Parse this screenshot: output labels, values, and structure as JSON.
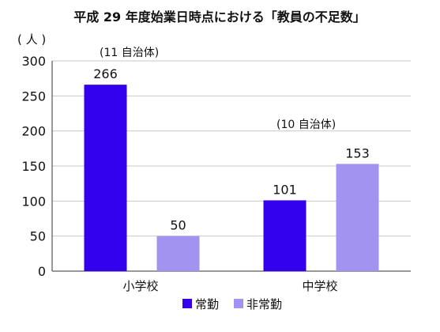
{
  "chart_data": {
    "type": "bar",
    "title": "平成 29 年度始業日時点における「教員の不足数」",
    "ylabel": "( 人 )",
    "ylim": [
      0,
      300
    ],
    "yticks": [
      0,
      50,
      100,
      150,
      200,
      250,
      300
    ],
    "grid": true,
    "legend_position": "bottom",
    "categories": [
      "小学校",
      "中学校"
    ],
    "series": [
      {
        "name": "常勤",
        "values": [
          266,
          101
        ],
        "color": "#3300ee"
      },
      {
        "name": "非常勤",
        "values": [
          50,
          153
        ],
        "color": "#a393f0"
      }
    ],
    "annotations": [
      "(11 自治体)",
      "(10 自治体)"
    ]
  }
}
